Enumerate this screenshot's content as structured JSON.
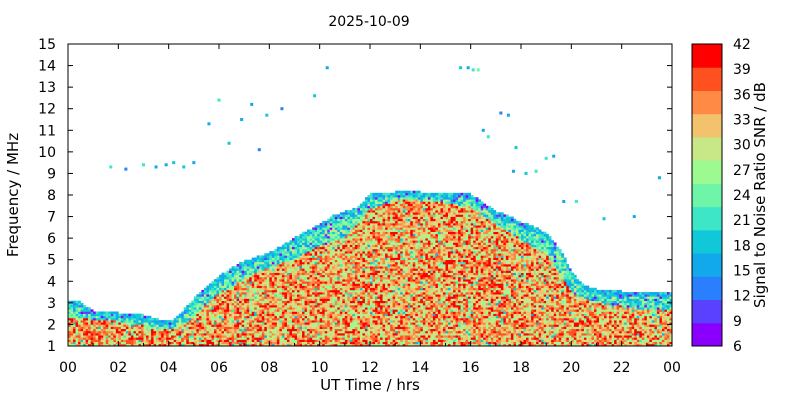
{
  "chart_data": {
    "type": "heatmap",
    "title": "2025-10-09",
    "xlabel": "UT Time / hrs",
    "ylabel": "Frequency / MHz",
    "colorbar_label": "Signal to Noise Ratio SNR / dB",
    "xlim": [
      0,
      24
    ],
    "ylim": [
      1,
      15
    ],
    "x_ticks": [
      "00",
      "02",
      "04",
      "06",
      "08",
      "10",
      "12",
      "14",
      "16",
      "18",
      "20",
      "22",
      "00"
    ],
    "y_ticks": [
      "1",
      "2",
      "3",
      "4",
      "5",
      "6",
      "7",
      "8",
      "9",
      "10",
      "11",
      "12",
      "13",
      "14",
      "15"
    ],
    "colorbar_ticks": [
      "6",
      "9",
      "12",
      "15",
      "18",
      "21",
      "24",
      "27",
      "30",
      "33",
      "36",
      "39",
      "42"
    ],
    "colorbar_range": [
      6,
      42
    ],
    "colorbar_colors": [
      "#8a00ff",
      "#5a40ff",
      "#2a7fff",
      "#12a8ec",
      "#10c8d8",
      "#3ee6c8",
      "#6ff5a8",
      "#9dfa90",
      "#c8e888",
      "#f3c26c",
      "#ff8a45",
      "#ff5020",
      "#ff0000"
    ],
    "grid": false,
    "mof_envelope": [
      [
        0,
        3.1
      ],
      [
        0.5,
        3.0
      ],
      [
        1,
        2.6
      ],
      [
        2,
        2.5
      ],
      [
        3,
        2.4
      ],
      [
        3.6,
        2.2
      ],
      [
        4.2,
        2.15
      ],
      [
        4.8,
        2.9
      ],
      [
        5.2,
        3.4
      ],
      [
        5.6,
        3.8
      ],
      [
        6,
        4.2
      ],
      [
        6.5,
        4.6
      ],
      [
        7,
        4.9
      ],
      [
        7.5,
        5.1
      ],
      [
        8,
        5.3
      ],
      [
        8.5,
        5.6
      ],
      [
        9,
        6.0
      ],
      [
        9.5,
        6.3
      ],
      [
        10,
        6.6
      ],
      [
        10.5,
        7.0
      ],
      [
        11,
        7.2
      ],
      [
        11.5,
        7.4
      ],
      [
        12,
        8.0
      ],
      [
        13,
        8.1
      ],
      [
        14,
        8.1
      ],
      [
        15,
        8.0
      ],
      [
        15.5,
        8.1
      ],
      [
        16,
        8.0
      ],
      [
        16.5,
        7.6
      ],
      [
        17,
        7.2
      ],
      [
        17.5,
        7.0
      ],
      [
        18,
        6.7
      ],
      [
        18.5,
        6.5
      ],
      [
        19,
        6.2
      ],
      [
        19.6,
        5.4
      ],
      [
        20,
        4.4
      ],
      [
        20.5,
        3.8
      ],
      [
        21,
        3.6
      ],
      [
        22,
        3.5
      ],
      [
        23,
        3.5
      ],
      [
        24,
        3.5
      ]
    ],
    "strong_envelope": [
      [
        0,
        2.3
      ],
      [
        1,
        2.2
      ],
      [
        2,
        2.1
      ],
      [
        3,
        1.9
      ],
      [
        4,
        1.7
      ],
      [
        4.8,
        2.1
      ],
      [
        5.5,
        2.9
      ],
      [
        6,
        3.4
      ],
      [
        7,
        4.1
      ],
      [
        8,
        4.6
      ],
      [
        9,
        5.0
      ],
      [
        10,
        5.6
      ],
      [
        11,
        6.0
      ],
      [
        12,
        7.3
      ],
      [
        13,
        7.7
      ],
      [
        14,
        7.8
      ],
      [
        15,
        7.6
      ],
      [
        16,
        7.4
      ],
      [
        17,
        6.6
      ],
      [
        18,
        5.9
      ],
      [
        19,
        5.2
      ],
      [
        19.6,
        4.3
      ],
      [
        20,
        3.4
      ],
      [
        21,
        3.0
      ],
      [
        22,
        2.8
      ],
      [
        23,
        2.6
      ],
      [
        24,
        2.7
      ]
    ],
    "sporadic_clusters": [
      {
        "x": [
          1.7,
          2.3,
          3.0,
          3.5,
          3.9,
          4.2,
          4.6,
          5.0
        ],
        "y": [
          9.3,
          9.2,
          9.4,
          9.3,
          9.4,
          9.5,
          9.3,
          9.5
        ]
      },
      {
        "x": [
          5.6,
          6.0,
          6.4,
          6.9,
          7.3,
          7.6,
          7.9,
          8.5,
          9.8,
          10.3
        ],
        "y": [
          11.3,
          12.4,
          10.4,
          11.5,
          12.2,
          10.1,
          11.7,
          12.0,
          12.6,
          13.9
        ]
      },
      {
        "x": [
          15.6,
          15.9,
          16.1,
          16.3,
          16.5,
          16.7,
          17.2,
          17.5,
          17.8
        ],
        "y": [
          13.9,
          13.9,
          13.8,
          13.8,
          11.0,
          10.7,
          11.8,
          11.7,
          10.2
        ]
      },
      {
        "x": [
          17.7,
          18.2,
          18.6,
          19.0,
          19.3,
          19.7,
          20.2,
          21.3,
          22.5,
          23.5
        ],
        "y": [
          9.1,
          9.0,
          9.1,
          9.7,
          9.8,
          7.7,
          7.7,
          6.9,
          7.0,
          8.8
        ]
      }
    ]
  }
}
